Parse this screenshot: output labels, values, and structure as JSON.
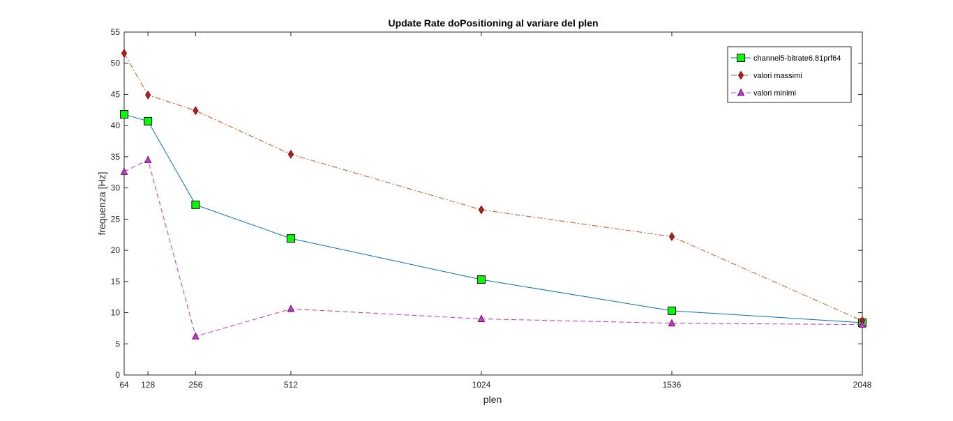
{
  "chart_data": {
    "type": "line",
    "title": "Update Rate doPositioning al variare del plen",
    "xlabel": "plen",
    "ylabel": "frequenza [Hz]",
    "x": [
      64,
      128,
      256,
      512,
      1024,
      1536,
      2048
    ],
    "x_tick_labels": [
      "64",
      "128",
      "256",
      "512",
      "1024",
      "1536",
      "2048"
    ],
    "xlim": [
      64,
      2048
    ],
    "ylim": [
      0,
      55
    ],
    "y_ticks": [
      0,
      5,
      10,
      15,
      20,
      25,
      30,
      35,
      40,
      45,
      50,
      55
    ],
    "grid": false,
    "legend_position": "top-right",
    "series": [
      {
        "name": "channel5-bitrate6.81prf64",
        "values": [
          41.8,
          40.7,
          27.3,
          21.9,
          15.3,
          10.3,
          8.4
        ],
        "color": "#0072BD",
        "line_style": "solid",
        "marker": "square",
        "marker_fill": "#00FF00",
        "marker_edge": "#000000"
      },
      {
        "name": "valori massimi",
        "values": [
          51.6,
          44.9,
          42.4,
          35.4,
          26.5,
          22.2,
          8.7
        ],
        "color": "#D95319",
        "line_style": "dashdot",
        "marker": "diamond",
        "marker_fill": "#B22222",
        "marker_edge": "#8B0000"
      },
      {
        "name": "valori minimi",
        "values": [
          32.6,
          34.5,
          6.2,
          10.6,
          9.0,
          8.3,
          8.1
        ],
        "color": "#CC33CC",
        "line_style": "dashed",
        "marker": "triangle",
        "marker_fill": "#BF40BF",
        "marker_edge": "#800080"
      }
    ]
  }
}
